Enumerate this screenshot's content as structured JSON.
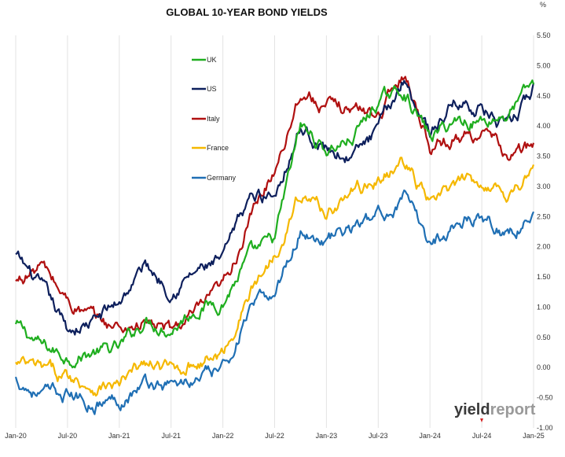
{
  "chart_data": {
    "type": "line",
    "title": "GLOBAL 10-YEAR BOND YIELDS",
    "ylabel": "%",
    "ylim": [
      -1.0,
      5.5
    ],
    "y_ticks": [
      "5.50",
      "5.00",
      "4.50",
      "4.00",
      "3.50",
      "3.00",
      "2.50",
      "2.00",
      "1.50",
      "1.00",
      "0.50",
      "0.00",
      "-0.50",
      "-1.00"
    ],
    "x_ticks": [
      "Jan-20",
      "Jul-20",
      "Jan-21",
      "Jul-21",
      "Jan-22",
      "Jul-22",
      "Jan-23",
      "Jul-23",
      "Jan-24",
      "Jul-24",
      "Jan-25"
    ],
    "grid": "vertical",
    "legend_position": "top-left",
    "x": [
      "Jan-20",
      "Apr-20",
      "Jul-20",
      "Oct-20",
      "Jan-21",
      "Apr-21",
      "Jul-21",
      "Oct-21",
      "Jan-22",
      "Apr-22",
      "Jul-22",
      "Oct-22",
      "Jan-23",
      "Apr-23",
      "Jul-23",
      "Oct-23",
      "Jan-24",
      "Apr-24",
      "Jul-24",
      "Oct-24",
      "Jan-25"
    ],
    "series": [
      {
        "name": "UK",
        "color": "#1fae1f",
        "values": [
          0.7,
          0.35,
          0.18,
          0.25,
          0.3,
          0.8,
          0.65,
          1.0,
          1.1,
          1.8,
          2.1,
          4.0,
          3.6,
          3.8,
          4.4,
          4.6,
          3.8,
          4.1,
          4.1,
          4.2,
          4.7
        ]
      },
      {
        "name": "US",
        "color": "#0d1f5c",
        "values": [
          1.85,
          1.3,
          0.62,
          0.75,
          1.1,
          1.7,
          1.3,
          1.6,
          1.75,
          2.8,
          2.9,
          4.0,
          3.6,
          3.5,
          3.9,
          4.8,
          3.9,
          4.4,
          4.3,
          3.9,
          4.6
        ]
      },
      {
        "name": "Italy",
        "color": "#b01010",
        "values": [
          1.4,
          1.7,
          1.1,
          0.8,
          0.65,
          0.75,
          0.6,
          0.9,
          1.3,
          2.4,
          3.3,
          4.6,
          4.3,
          4.3,
          4.2,
          4.9,
          3.7,
          3.8,
          3.9,
          3.5,
          3.65
        ]
      },
      {
        "name": "France",
        "color": "#f5b800",
        "values": [
          0.05,
          -0.05,
          -0.15,
          -0.3,
          -0.3,
          0.05,
          -0.05,
          0.1,
          0.2,
          1.2,
          1.9,
          2.9,
          2.6,
          2.9,
          3.1,
          3.4,
          2.7,
          3.0,
          3.1,
          2.9,
          3.25
        ]
      },
      {
        "name": "Germany",
        "color": "#1f6fb4",
        "values": [
          -0.2,
          -0.45,
          -0.45,
          -0.58,
          -0.52,
          -0.25,
          -0.3,
          -0.2,
          -0.05,
          0.9,
          1.25,
          2.3,
          2.1,
          2.3,
          2.5,
          2.8,
          2.05,
          2.4,
          2.55,
          2.2,
          2.5
        ]
      }
    ]
  },
  "logo": {
    "part1": "yield",
    "part2": "report"
  }
}
